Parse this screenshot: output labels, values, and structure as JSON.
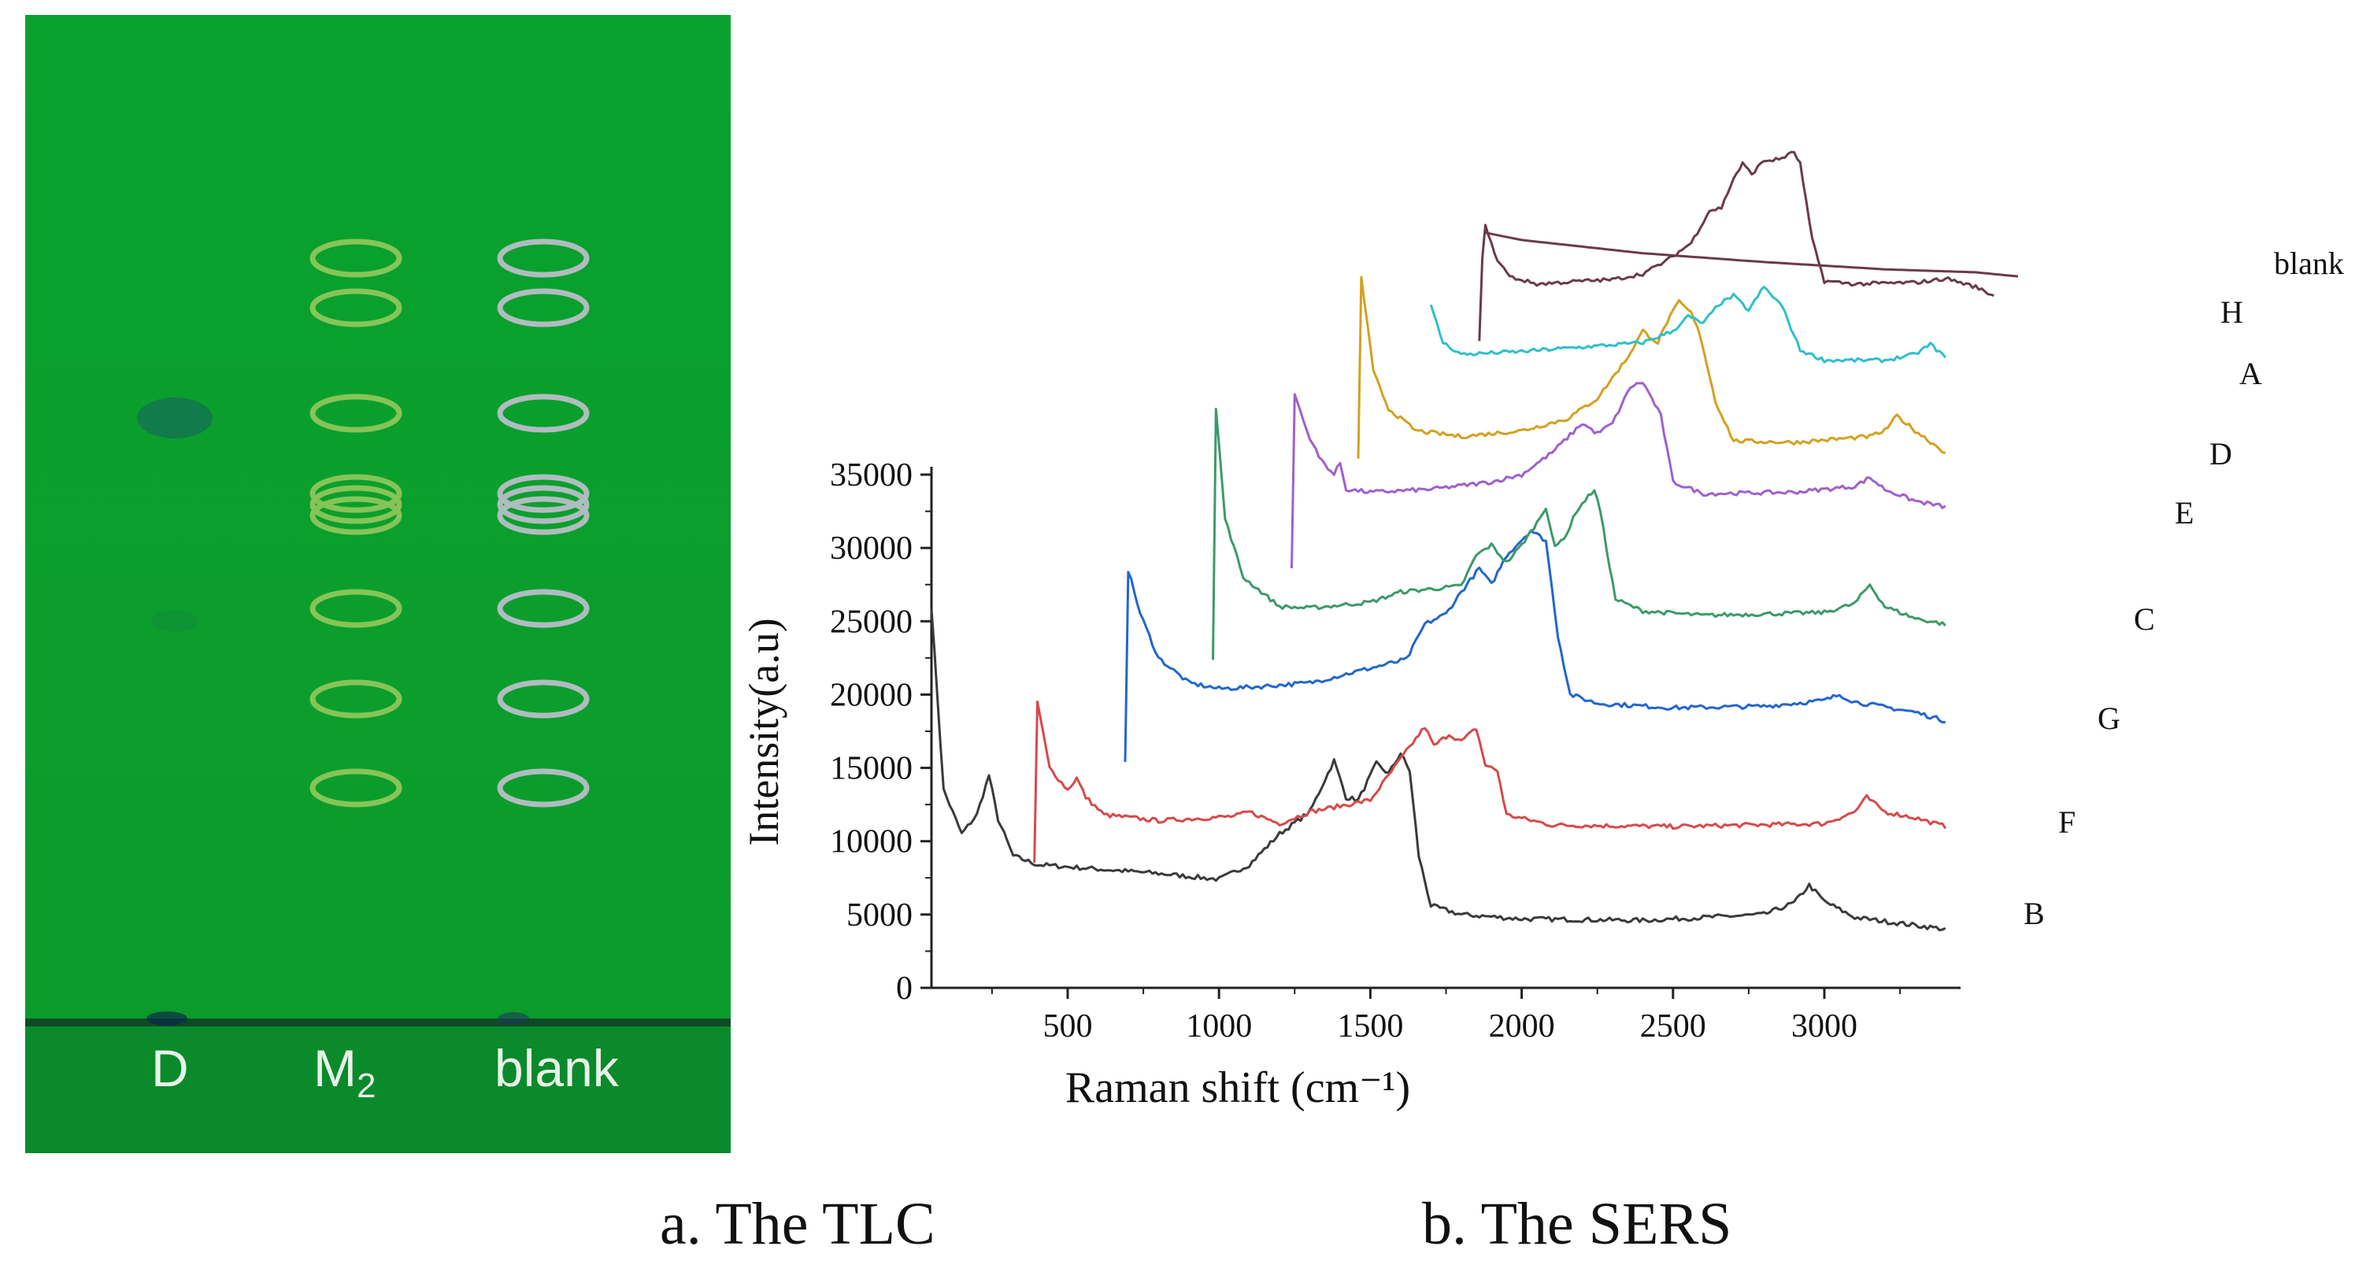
{
  "captions": {
    "a": "a. The TLC",
    "b": "b. The SERS"
  },
  "tlc": {
    "lanes": [
      "D",
      "M",
      "blank"
    ],
    "lane_subscripts": [
      "",
      "2",
      ""
    ],
    "colors": {
      "plate": "#0aa12e",
      "m2_ring": "#8dc75a",
      "blank_ring": "#b9bec8",
      "d_spot": "#1d4f6e"
    }
  },
  "chart_data": {
    "type": "line",
    "title": "",
    "xlabel": "Raman shift (cm⁻¹)",
    "ylabel": "Intensity(a.u)",
    "xlim": [
      50,
      3450
    ],
    "ylim": [
      0,
      35000
    ],
    "x_ticks": [
      500,
      1000,
      1500,
      2000,
      2500,
      3000
    ],
    "y_ticks": [
      0,
      5000,
      10000,
      15000,
      20000,
      25000,
      30000,
      35000
    ],
    "grid": false,
    "legend": "inline labels at right end of each curve",
    "series": [
      {
        "name": "B",
        "color": "#3a3a3a",
        "offset": 0,
        "start": 50,
        "end": 3400,
        "step": 10,
        "noise": 160,
        "base": [
          [
            50,
            26000
          ],
          [
            90,
            13500
          ],
          [
            150,
            10500
          ],
          [
            200,
            11800
          ],
          [
            240,
            14500
          ],
          [
            270,
            11500
          ],
          [
            320,
            9000
          ],
          [
            400,
            8400
          ],
          [
            600,
            8100
          ],
          [
            800,
            7800
          ],
          [
            1000,
            7400
          ],
          [
            1100,
            8400
          ],
          [
            1200,
            10500
          ],
          [
            1300,
            12000
          ],
          [
            1380,
            15500
          ],
          [
            1420,
            13000
          ],
          [
            1460,
            12800
          ],
          [
            1520,
            15300
          ],
          [
            1560,
            14600
          ],
          [
            1600,
            16000
          ],
          [
            1630,
            14800
          ],
          [
            1660,
            9000
          ],
          [
            1700,
            5600
          ],
          [
            1800,
            5000
          ],
          [
            2000,
            4700
          ],
          [
            2400,
            4600
          ],
          [
            2800,
            5000
          ],
          [
            2900,
            5800
          ],
          [
            2950,
            7000
          ],
          [
            3000,
            5900
          ],
          [
            3100,
            4800
          ],
          [
            3400,
            4000
          ]
        ]
      },
      {
        "name": "F",
        "color": "#d64a4a",
        "offset": 0,
        "start": 390,
        "end": 3400,
        "step": 10,
        "noise": 150,
        "base": [
          [
            390,
            8400
          ],
          [
            400,
            19500
          ],
          [
            440,
            15000
          ],
          [
            500,
            13500
          ],
          [
            530,
            14300
          ],
          [
            560,
            13000
          ],
          [
            620,
            11800
          ],
          [
            800,
            11400
          ],
          [
            1050,
            11700
          ],
          [
            1100,
            12000
          ],
          [
            1200,
            11200
          ],
          [
            1300,
            12000
          ],
          [
            1500,
            12800
          ],
          [
            1600,
            15600
          ],
          [
            1680,
            17800
          ],
          [
            1710,
            16500
          ],
          [
            1760,
            17300
          ],
          [
            1800,
            16800
          ],
          [
            1850,
            17700
          ],
          [
            1880,
            15200
          ],
          [
            1920,
            14800
          ],
          [
            1950,
            11800
          ],
          [
            2100,
            11100
          ],
          [
            2500,
            11000
          ],
          [
            3000,
            11200
          ],
          [
            3100,
            12000
          ],
          [
            3140,
            13000
          ],
          [
            3200,
            12000
          ],
          [
            3300,
            11600
          ],
          [
            3400,
            11000
          ]
        ]
      },
      {
        "name": "G",
        "color": "#2266cc",
        "offset": 0,
        "start": 690,
        "end": 3400,
        "step": 10,
        "noise": 150,
        "base": [
          [
            690,
            15500
          ],
          [
            700,
            28500
          ],
          [
            740,
            25500
          ],
          [
            800,
            22500
          ],
          [
            900,
            20800
          ],
          [
            1000,
            20400
          ],
          [
            1100,
            20500
          ],
          [
            1300,
            20800
          ],
          [
            1500,
            21800
          ],
          [
            1620,
            22400
          ],
          [
            1680,
            24800
          ],
          [
            1750,
            25500
          ],
          [
            1800,
            27000
          ],
          [
            1860,
            28600
          ],
          [
            1900,
            27500
          ],
          [
            1950,
            29500
          ],
          [
            2030,
            31200
          ],
          [
            2080,
            30500
          ],
          [
            2120,
            24000
          ],
          [
            2160,
            20000
          ],
          [
            2250,
            19400
          ],
          [
            2500,
            19100
          ],
          [
            2800,
            19200
          ],
          [
            3000,
            19600
          ],
          [
            3050,
            20000
          ],
          [
            3100,
            19500
          ],
          [
            3300,
            18800
          ],
          [
            3400,
            18200
          ]
        ]
      },
      {
        "name": "C",
        "color": "#3c9a6a",
        "offset": 0,
        "start": 980,
        "end": 3400,
        "step": 10,
        "noise": 140,
        "base": [
          [
            980,
            22500
          ],
          [
            990,
            39500
          ],
          [
            1020,
            32000
          ],
          [
            1080,
            28000
          ],
          [
            1200,
            26000
          ],
          [
            1300,
            25900
          ],
          [
            1500,
            26300
          ],
          [
            1600,
            27000
          ],
          [
            1700,
            27200
          ],
          [
            1800,
            27400
          ],
          [
            1850,
            29500
          ],
          [
            1900,
            30200
          ],
          [
            1950,
            29000
          ],
          [
            2000,
            30200
          ],
          [
            2050,
            31700
          ],
          [
            2080,
            32800
          ],
          [
            2110,
            30000
          ],
          [
            2150,
            31000
          ],
          [
            2180,
            32500
          ],
          [
            2240,
            34000
          ],
          [
            2260,
            32500
          ],
          [
            2280,
            30000
          ],
          [
            2310,
            26500
          ],
          [
            2400,
            25700
          ],
          [
            2600,
            25400
          ],
          [
            3000,
            25600
          ],
          [
            3100,
            26200
          ],
          [
            3150,
            27500
          ],
          [
            3200,
            26000
          ],
          [
            3300,
            25200
          ],
          [
            3400,
            24800
          ]
        ]
      },
      {
        "name": "E",
        "color": "#a060cc",
        "offset": 0,
        "start": 1240,
        "end": 3400,
        "step": 10,
        "noise": 140,
        "base": [
          [
            1240,
            28500
          ],
          [
            1250,
            40500
          ],
          [
            1290,
            38000
          ],
          [
            1330,
            36200
          ],
          [
            1380,
            35000
          ],
          [
            1400,
            35800
          ],
          [
            1420,
            34000
          ],
          [
            1500,
            33800
          ],
          [
            1700,
            34000
          ],
          [
            1900,
            34500
          ],
          [
            2000,
            35000
          ],
          [
            2100,
            36500
          ],
          [
            2200,
            38500
          ],
          [
            2250,
            37800
          ],
          [
            2300,
            38500
          ],
          [
            2360,
            41000
          ],
          [
            2400,
            41300
          ],
          [
            2430,
            40200
          ],
          [
            2460,
            39000
          ],
          [
            2500,
            34500
          ],
          [
            2600,
            33700
          ],
          [
            2900,
            33800
          ],
          [
            3100,
            34200
          ],
          [
            3150,
            34800
          ],
          [
            3200,
            34000
          ],
          [
            3300,
            33200
          ],
          [
            3400,
            32800
          ]
        ]
      },
      {
        "name": "D",
        "color": "#d4a020",
        "offset": 0,
        "start": 1460,
        "end": 3400,
        "step": 10,
        "noise": 140,
        "base": [
          [
            1460,
            36000
          ],
          [
            1470,
            48500
          ],
          [
            1510,
            42000
          ],
          [
            1560,
            39500
          ],
          [
            1650,
            38000
          ],
          [
            1800,
            37600
          ],
          [
            2000,
            38000
          ],
          [
            2150,
            38800
          ],
          [
            2250,
            40200
          ],
          [
            2350,
            43000
          ],
          [
            2400,
            44800
          ],
          [
            2450,
            44000
          ],
          [
            2480,
            45400
          ],
          [
            2520,
            46800
          ],
          [
            2560,
            46000
          ],
          [
            2590,
            44500
          ],
          [
            2640,
            40000
          ],
          [
            2700,
            37300
          ],
          [
            2900,
            37200
          ],
          [
            3150,
            37600
          ],
          [
            3200,
            38000
          ],
          [
            3240,
            39000
          ],
          [
            3300,
            38000
          ],
          [
            3400,
            36500
          ]
        ]
      },
      {
        "name": "A",
        "color": "#2fbfca",
        "offset": 0,
        "start": 1700,
        "end": 3400,
        "step": 10,
        "noise": 130,
        "base": [
          [
            1700,
            46500
          ],
          [
            1740,
            44000
          ],
          [
            1800,
            43200
          ],
          [
            2000,
            43400
          ],
          [
            2200,
            43700
          ],
          [
            2400,
            44000
          ],
          [
            2500,
            44800
          ],
          [
            2550,
            45800
          ],
          [
            2600,
            45300
          ],
          [
            2650,
            46600
          ],
          [
            2700,
            47200
          ],
          [
            2750,
            46200
          ],
          [
            2800,
            47800
          ],
          [
            2860,
            46500
          ],
          [
            2920,
            43500
          ],
          [
            3000,
            42800
          ],
          [
            3200,
            42800
          ],
          [
            3300,
            43200
          ],
          [
            3350,
            43900
          ],
          [
            3400,
            43000
          ]
        ]
      },
      {
        "name": "H",
        "color": "#6b3a4a",
        "offset": 0,
        "start": 1860,
        "end": 3400,
        "step": 10,
        "noise": 130,
        "base": [
          [
            1860,
            44000
          ],
          [
            1875,
            52500
          ],
          [
            1910,
            50000
          ],
          [
            1960,
            48500
          ],
          [
            2050,
            48000
          ],
          [
            2200,
            48200
          ],
          [
            2300,
            48300
          ],
          [
            2400,
            48700
          ],
          [
            2480,
            49600
          ],
          [
            2560,
            50800
          ],
          [
            2620,
            53000
          ],
          [
            2660,
            53200
          ],
          [
            2700,
            55200
          ],
          [
            2730,
            56200
          ],
          [
            2760,
            55500
          ],
          [
            2800,
            56400
          ],
          [
            2850,
            56500
          ],
          [
            2900,
            57000
          ],
          [
            2920,
            56200
          ],
          [
            2960,
            51000
          ],
          [
            3000,
            48200
          ],
          [
            3100,
            48000
          ],
          [
            3300,
            48100
          ],
          [
            3380,
            48300
          ],
          [
            3400,
            48400
          ],
          [
            3500,
            47800
          ],
          [
            3560,
            47200
          ]
        ]
      },
      {
        "name": "blank",
        "color": "#6b3a4a",
        "offset": 0,
        "start": 1880,
        "end": 3500,
        "step": 20,
        "noise": 0,
        "base": [
          [
            1880,
            51500
          ],
          [
            2000,
            51000
          ],
          [
            2400,
            50100
          ],
          [
            2800,
            49500
          ],
          [
            3200,
            49000
          ],
          [
            3500,
            48800
          ],
          [
            3650,
            48500
          ]
        ]
      }
    ]
  }
}
